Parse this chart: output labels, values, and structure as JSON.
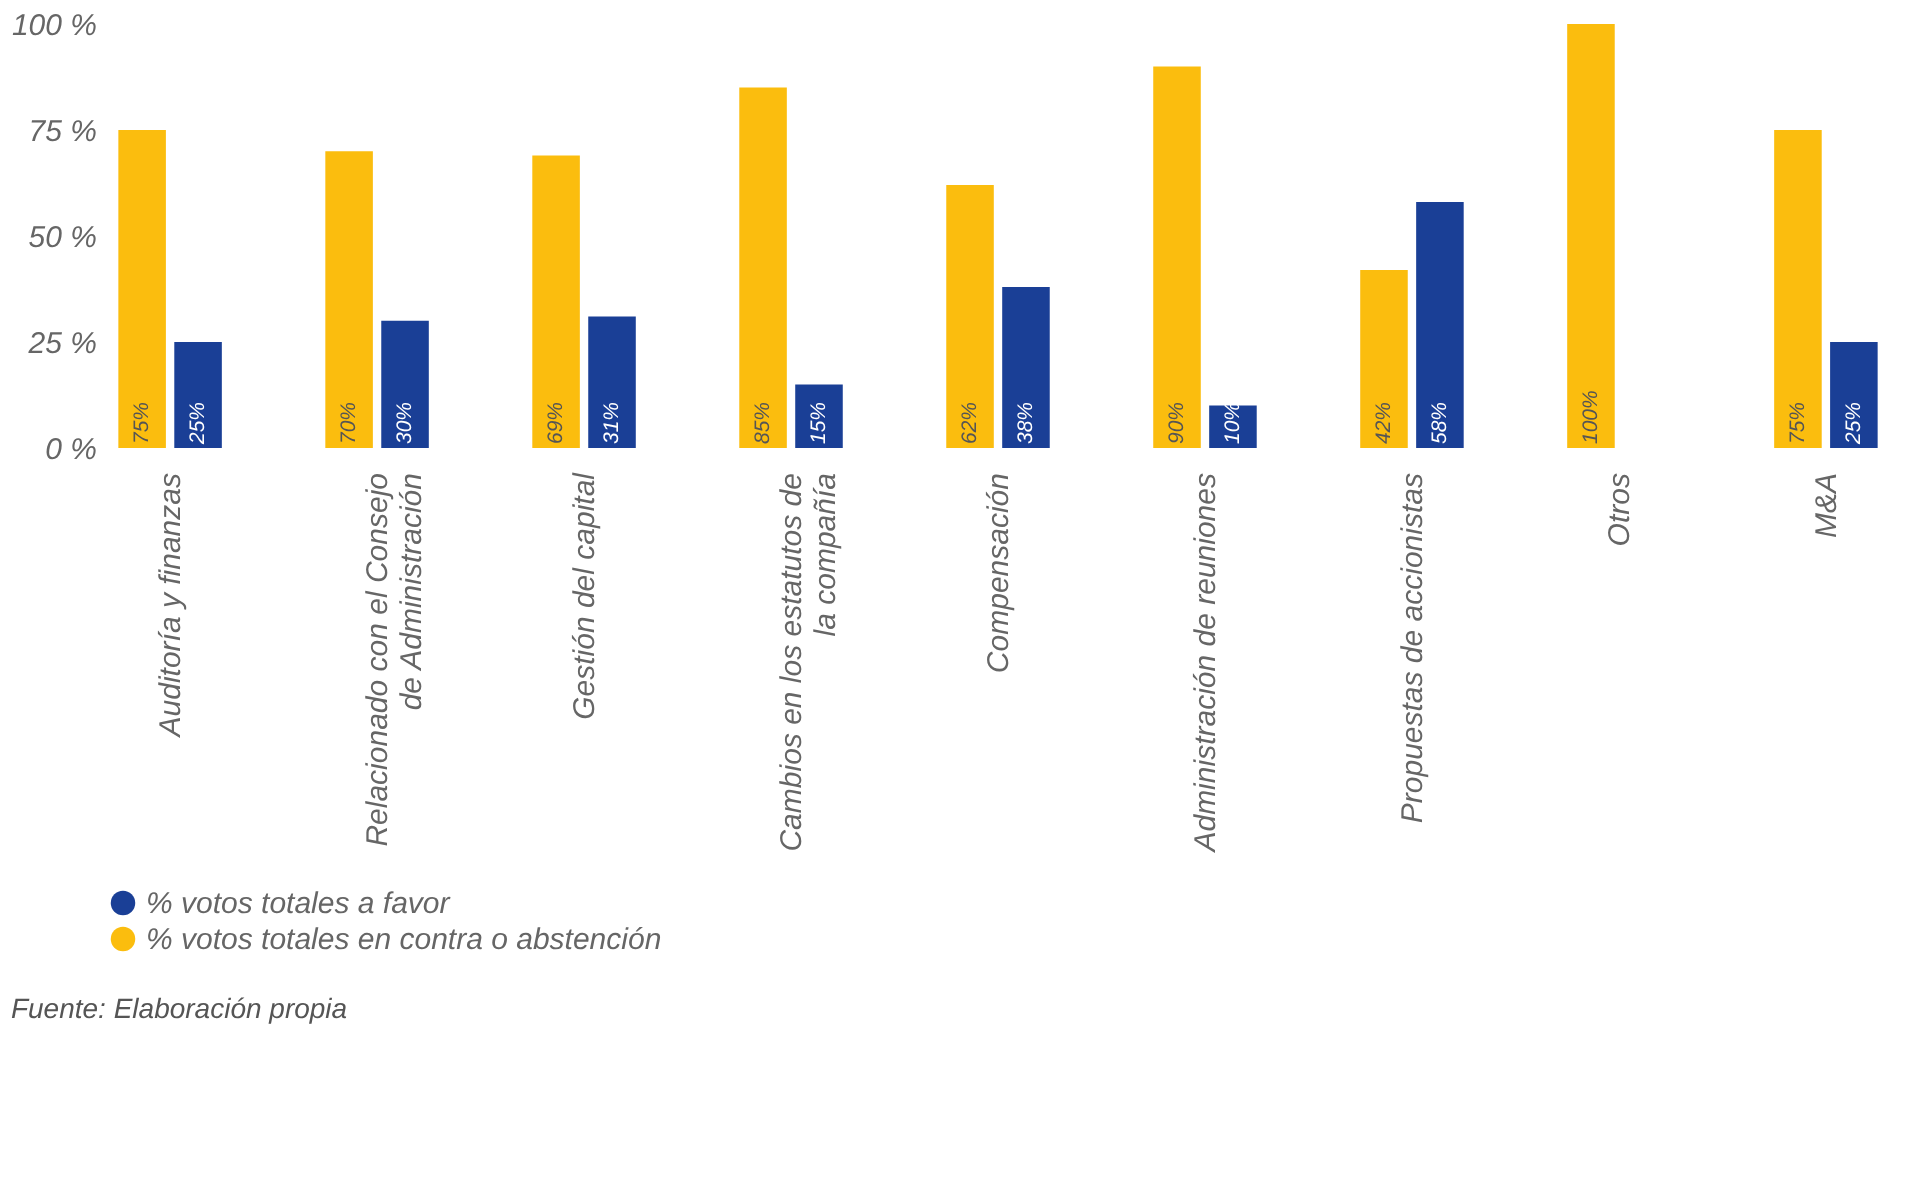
{
  "chart_data": {
    "type": "bar",
    "categories": [
      "Auditoría y finanzas",
      "Relacionado con el Consejo de Administración",
      "Gestión del capital",
      "Cambios en los estatutos de la compañía",
      "Compensación",
      "Administración de reuniones",
      "Propuestas de accionistas",
      "Otros",
      "M&A"
    ],
    "series": [
      {
        "name": "% votos totales a favor",
        "color": "#1a3f96",
        "values": [
          25,
          30,
          31,
          15,
          38,
          10,
          58,
          0,
          25
        ],
        "value_labels": [
          "25%",
          "30%",
          "31%",
          "15%",
          "38%",
          "10%",
          "58%",
          null,
          "25%"
        ]
      },
      {
        "name": "% votos totales en contra o abstención",
        "color": "#fbbd0e",
        "values": [
          75,
          70,
          69,
          85,
          62,
          90,
          42,
          100,
          75
        ],
        "value_labels": [
          "75%",
          "70%",
          "69%",
          "85%",
          "62%",
          "90%",
          "42%",
          "100%",
          "75%"
        ]
      }
    ],
    "ylim": [
      0,
      100
    ],
    "yticks": [
      {
        "value": 0,
        "label": "0 %"
      },
      {
        "value": 25,
        "label": "25 %"
      },
      {
        "value": 50,
        "label": "50 %"
      },
      {
        "value": 75,
        "label": "75 %"
      },
      {
        "value": 100,
        "label": "100 %"
      }
    ],
    "grid": false,
    "legend": "bottom left",
    "annotations": [
      "Fuente: Elaboración propia"
    ]
  }
}
